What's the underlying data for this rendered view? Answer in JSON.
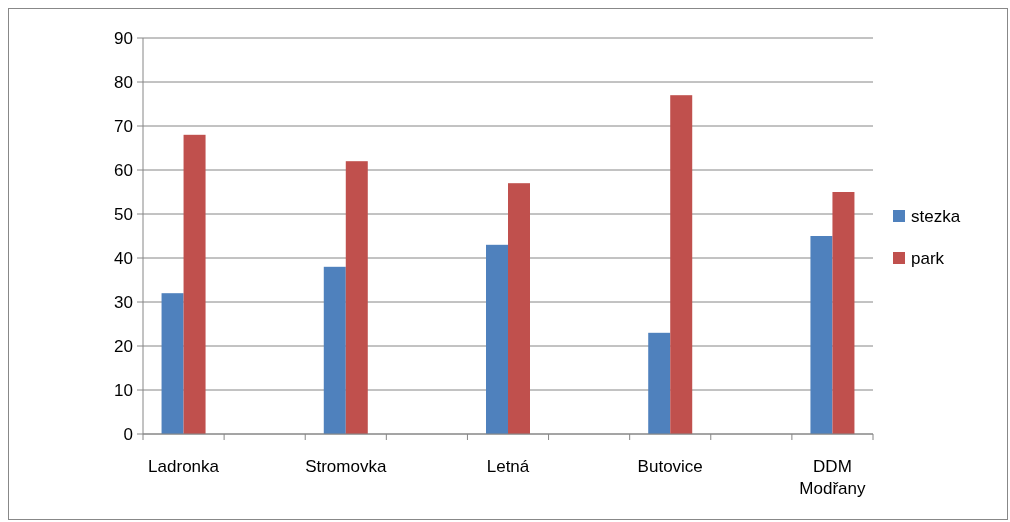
{
  "chart_data": {
    "type": "bar",
    "categories": [
      "Ladronka",
      null,
      "Stromovka",
      null,
      "Letná",
      null,
      "Butovice",
      null,
      "DDM Modřany"
    ],
    "series": [
      {
        "name": "stezka",
        "color": "#4f81bd",
        "values": [
          32,
          null,
          38,
          null,
          43,
          null,
          23,
          null,
          45
        ]
      },
      {
        "name": "park",
        "color": "#c0504d",
        "values": [
          68,
          null,
          62,
          null,
          57,
          null,
          77,
          null,
          55
        ]
      }
    ],
    "ylim": [
      0,
      90
    ],
    "yticks": [
      0,
      10,
      20,
      30,
      40,
      50,
      60,
      70,
      80,
      90
    ],
    "grid": "y",
    "legend": "right"
  }
}
